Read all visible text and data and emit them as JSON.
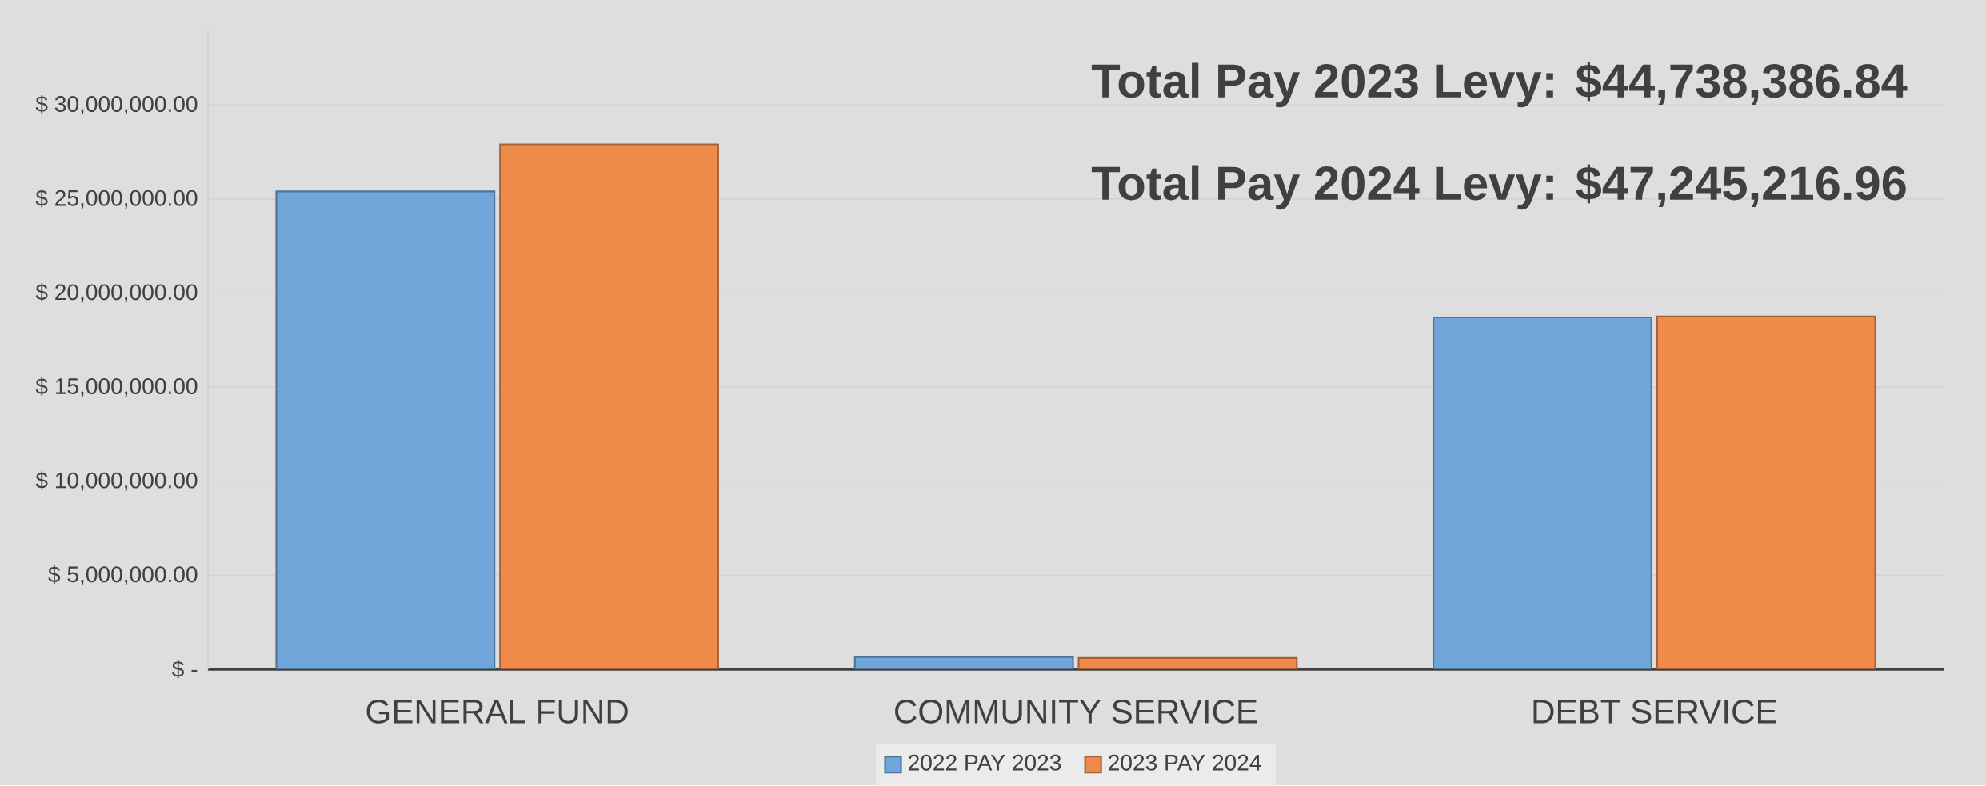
{
  "chart_data": {
    "type": "bar",
    "categories": [
      "GENERAL FUND",
      "COMMUNITY SERVICE",
      "DEBT SERVICE"
    ],
    "series": [
      {
        "name": "2022 PAY 2023",
        "color": "#6fa5d8",
        "values": [
          25400000,
          650000,
          18700000
        ]
      },
      {
        "name": "2023 PAY 2024",
        "color": "#ee8b4a",
        "values": [
          27900000,
          600000,
          18750000
        ]
      }
    ],
    "ylim": [
      0,
      34000000
    ],
    "yticks": [
      {
        "value": 0,
        "label": "$ -"
      },
      {
        "value": 5000000,
        "label": "$ 5,000,000.00"
      },
      {
        "value": 10000000,
        "label": "$ 10,000,000.00"
      },
      {
        "value": 15000000,
        "label": "$ 15,000,000.00"
      },
      {
        "value": 20000000,
        "label": "$ 20,000,000.00"
      },
      {
        "value": 25000000,
        "label": "$ 25,000,000.00"
      },
      {
        "value": 30000000,
        "label": "$ 30,000,000.00"
      }
    ],
    "grid": "y",
    "legend": "bottom",
    "annotations": [
      "Total Pay 2023 Levy: $44,738,386.84",
      "Total Pay 2024 Levy: $47,245,216.96"
    ]
  }
}
